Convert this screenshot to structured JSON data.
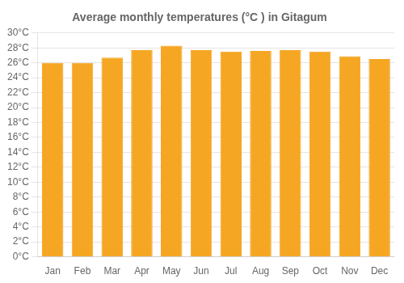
{
  "chart_data": {
    "type": "bar",
    "title": "Average monthly temperatures (°C ) in Gitagum",
    "categories": [
      "Jan",
      "Feb",
      "Mar",
      "Apr",
      "May",
      "Jun",
      "Jul",
      "Aug",
      "Sep",
      "Oct",
      "Nov",
      "Dec"
    ],
    "values": [
      26.0,
      26.0,
      26.7,
      27.7,
      28.3,
      27.7,
      27.5,
      27.6,
      27.7,
      27.5,
      26.9,
      26.5
    ],
    "color": "#F5A623",
    "ylim": [
      0,
      30
    ],
    "yticks": [
      {
        "value": 0,
        "label": "0°C"
      },
      {
        "value": 2,
        "label": "2°C"
      },
      {
        "value": 4,
        "label": "4°C"
      },
      {
        "value": 6,
        "label": "6°C"
      },
      {
        "value": 8,
        "label": "8°C"
      },
      {
        "value": 10,
        "label": "10°C"
      },
      {
        "value": 12,
        "label": "12°C"
      },
      {
        "value": 14,
        "label": "14°C"
      },
      {
        "value": 16,
        "label": "16°C"
      },
      {
        "value": 18,
        "label": "18°C"
      },
      {
        "value": 20,
        "label": "20°C"
      },
      {
        "value": 22,
        "label": "22°C"
      },
      {
        "value": 24,
        "label": "24°C"
      },
      {
        "value": 26,
        "label": "26°C"
      },
      {
        "value": 28,
        "label": "28°C"
      },
      {
        "value": 30,
        "label": "30°C"
      }
    ],
    "grid": true
  }
}
